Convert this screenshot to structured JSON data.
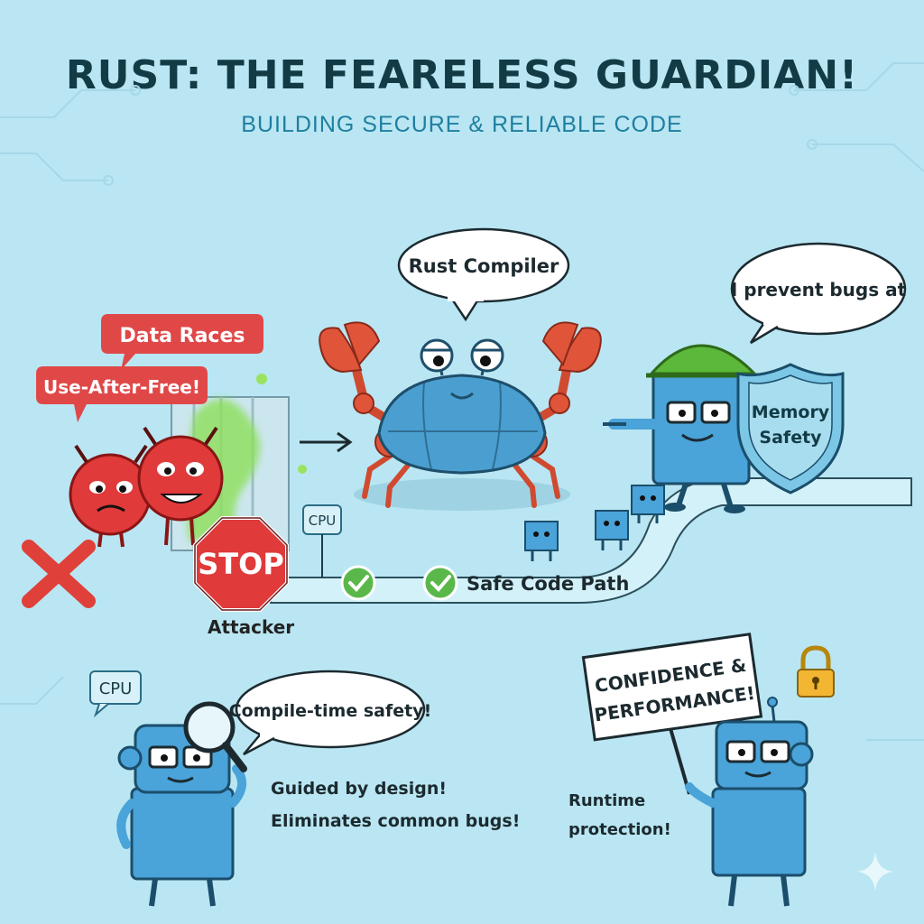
{
  "header": {
    "title": "RUST: THE FEARELESS GUARDIAN!",
    "subtitle": "BUILDING SECURE & RELIABLE CODE"
  },
  "bubbles": {
    "compiler": "Rust Compiler",
    "prevent": "I prevent bugs at",
    "compile_time": "Compile-time safety!"
  },
  "threats": {
    "data_races": "Data Races",
    "use_after_free": "Use-After-Free!",
    "stop": "STOP",
    "attacker": "Attacker"
  },
  "path": {
    "cpu_top": "CPU",
    "safe_code_path": "Safe Code Path"
  },
  "shield": {
    "line1": "Memory",
    "line2": "Safety"
  },
  "bottom": {
    "cpu_badge": "CPU",
    "guided": "Guided by design!",
    "eliminates": "Eliminates common bugs!",
    "runtime_line1": "Runtime",
    "runtime_line2": "protection!",
    "sign_line1": "CONFIDENCE &",
    "sign_line2": "PERFORMANCE!"
  },
  "colors": {
    "background": "#b9e6f2",
    "title": "#123b45",
    "subtitle": "#1f7fa0",
    "crab": "#4a9fd0",
    "claw": "#e0553a",
    "monster": "#e03a3a",
    "robot": "#4aa3d9",
    "helmet": "#5cb83a",
    "check": "#5ab84a"
  }
}
